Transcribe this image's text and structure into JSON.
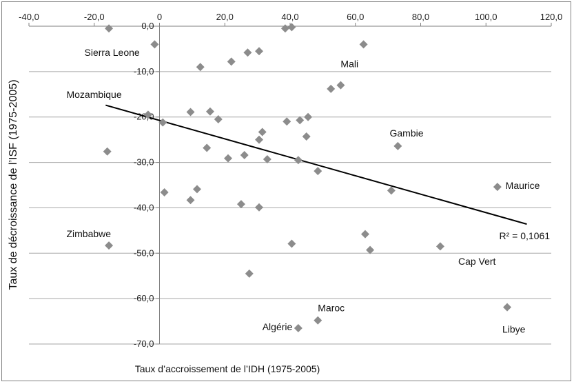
{
  "chart_data": {
    "type": "scatter",
    "title": "",
    "xlabel": "Taux d’accroissement de l’IDH (1975-2005)",
    "ylabel": "Taux de décroissance de l’ISF (1975-2005)",
    "xlim": [
      -40,
      120
    ],
    "ylim": [
      -70,
      0
    ],
    "x_ticks": [
      -40,
      -20,
      0,
      20,
      40,
      60,
      80,
      100,
      120
    ],
    "y_ticks": [
      0,
      -10,
      -20,
      -30,
      -40,
      -50,
      -60,
      -70
    ],
    "x_tick_labels": [
      "-40,0",
      "-20,0",
      "0",
      "20,0",
      "40,0",
      "60,0",
      "80,0",
      "100,0",
      "120,0"
    ],
    "y_tick_labels": [
      "0,0",
      "-10,0",
      "-20,0",
      "-30,0",
      "-40,0",
      "-50,0",
      "-60,0",
      "-70,0"
    ],
    "grid": {
      "horizontal": true,
      "vertical": false
    },
    "marker_color": "#8c8c8c",
    "points": [
      {
        "x": -15.5,
        "y": -0.5
      },
      {
        "x": -1.5,
        "y": -4.0
      },
      {
        "x": 38.5,
        "y": -0.5
      },
      {
        "x": 40.5,
        "y": -0.2
      },
      {
        "x": 62.5,
        "y": -4.0
      },
      {
        "x": 12.5,
        "y": -9.0
      },
      {
        "x": 22.0,
        "y": -7.8
      },
      {
        "x": 27.0,
        "y": -5.8
      },
      {
        "x": 30.5,
        "y": -5.5
      },
      {
        "x": 52.5,
        "y": -13.8
      },
      {
        "x": 55.5,
        "y": -13.0
      },
      {
        "x": -3.5,
        "y": -19.5
      },
      {
        "x": 1.0,
        "y": -21.2
      },
      {
        "x": 9.5,
        "y": -18.9
      },
      {
        "x": 15.5,
        "y": -18.8
      },
      {
        "x": 18.0,
        "y": -20.5
      },
      {
        "x": 39.0,
        "y": -21.0
      },
      {
        "x": 43.0,
        "y": -20.7
      },
      {
        "x": 45.5,
        "y": -20.0
      },
      {
        "x": 31.5,
        "y": -23.3
      },
      {
        "x": 30.5,
        "y": -25.0
      },
      {
        "x": 45.0,
        "y": -24.3
      },
      {
        "x": -16.0,
        "y": -27.6
      },
      {
        "x": 14.5,
        "y": -26.8
      },
      {
        "x": 21.0,
        "y": -29.1
      },
      {
        "x": 26.0,
        "y": -28.4
      },
      {
        "x": 33.0,
        "y": -29.3
      },
      {
        "x": 42.5,
        "y": -29.5
      },
      {
        "x": 48.5,
        "y": -31.9
      },
      {
        "x": 73.0,
        "y": -26.4
      },
      {
        "x": 71.0,
        "y": -36.2
      },
      {
        "x": 103.5,
        "y": -35.4
      },
      {
        "x": 1.5,
        "y": -36.6
      },
      {
        "x": 11.5,
        "y": -35.9
      },
      {
        "x": 9.5,
        "y": -38.3
      },
      {
        "x": 25.0,
        "y": -39.2
      },
      {
        "x": 30.5,
        "y": -39.9
      },
      {
        "x": -15.5,
        "y": -48.3
      },
      {
        "x": 40.5,
        "y": -47.9
      },
      {
        "x": 63.0,
        "y": -45.8
      },
      {
        "x": 64.5,
        "y": -49.3
      },
      {
        "x": 86.0,
        "y": -48.5
      },
      {
        "x": 27.5,
        "y": -54.5
      },
      {
        "x": 42.5,
        "y": -66.5
      },
      {
        "x": 48.5,
        "y": -64.8
      },
      {
        "x": 106.5,
        "y": -61.9
      }
    ],
    "trendline": {
      "type": "linear",
      "x_start": -16.5,
      "y_start": -17.4,
      "x_end": 112.5,
      "y_end": -43.6,
      "label": "R² = 0,1061"
    },
    "annotations": [
      {
        "text": "Sierra Leone",
        "x": -23.0,
        "y": -6.5
      },
      {
        "text": "Mali",
        "x": 55.5,
        "y": -9.0
      },
      {
        "text": "Mozambique",
        "x": -28.5,
        "y": -15.8
      },
      {
        "text": "Gambie",
        "x": 70.5,
        "y": -24.3
      },
      {
        "text": "Maurice",
        "x": 106.0,
        "y": -35.8
      },
      {
        "text": "Zimbabwe",
        "x": -28.5,
        "y": -46.5
      },
      {
        "text": "Cap Vert",
        "x": 91.5,
        "y": -52.5
      },
      {
        "text": "Maroc",
        "x": 48.5,
        "y": -62.8
      },
      {
        "text": "Algérie",
        "x": 31.5,
        "y": -67.0
      },
      {
        "text": "Libye",
        "x": 105.0,
        "y": -67.5
      }
    ]
  }
}
